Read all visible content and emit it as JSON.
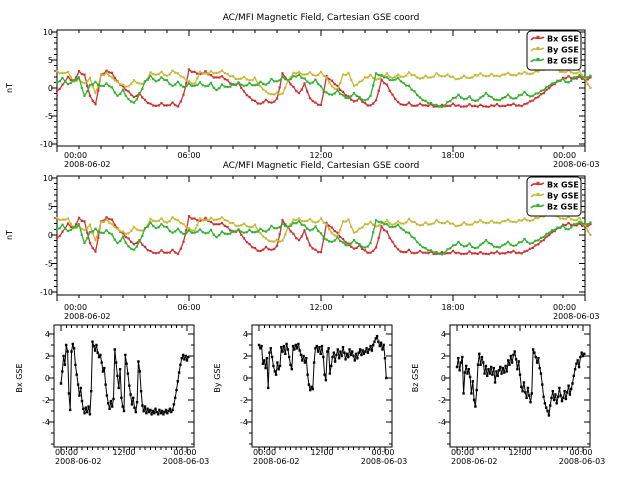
{
  "figure": {
    "background": "#ffffff",
    "axis_color": "#000000"
  },
  "chart_data": {
    "type": "line",
    "x_start": "2008-06-02 00:00",
    "x_end": "2008-06-03 00:00",
    "x_unit": "hours",
    "x_step_hours": 0.25,
    "series": [
      {
        "name": "Bx GSE",
        "color": "#cc3333",
        "values": [
          -0.5,
          0.6,
          2.0,
          1.2,
          3.0,
          2.4,
          -1.4,
          -2.9,
          2.4,
          3.1,
          2.7,
          1.2,
          0.3,
          -0.6,
          -1.6,
          -0.9,
          -2.1,
          -2.8,
          -3.2,
          -2.7,
          -3.1,
          -2.6,
          -3.3,
          -1.2,
          3.3,
          2.9,
          2.5,
          3.0,
          2.3,
          1.9,
          2.1,
          1.4,
          0.6,
          0.9,
          -0.6,
          -1.6,
          -2.3,
          -2.8,
          -2.1,
          -2.6,
          -1.9,
          2.6,
          1.4,
          0.2,
          -0.9,
          0.8,
          -1.8,
          -2.6,
          -3.0,
          2.1,
          1.3,
          0.4,
          -0.7,
          -1.5,
          -2.4,
          -1.8,
          -2.7,
          -3.1,
          -2.2,
          1.5,
          0.6,
          -1.2,
          -2.5,
          -3.0,
          -2.6,
          -3.2,
          -2.8,
          -3.1,
          -2.9,
          -3.3,
          -3.0,
          -3.2,
          -2.8,
          -3.1,
          -3.3,
          -2.9,
          -3.2,
          -3.0,
          -3.3,
          -3.1,
          -2.9,
          -3.2,
          -3.0,
          -2.8,
          -3.1,
          -2.9,
          -2.4,
          -1.8,
          -1.1,
          -0.3,
          0.5,
          1.2,
          1.8,
          2.1,
          1.7,
          2.0,
          1.6,
          1.9
        ]
      },
      {
        "name": "By GSE",
        "color": "#c8b83a",
        "values": [
          3.0,
          2.7,
          2.9,
          1.3,
          1.6,
          0.9,
          1.8,
          -0.9,
          2.3,
          2.7,
          1.9,
          1.1,
          0.6,
          0.3,
          1.4,
          0.8,
          1.1,
          2.8,
          2.4,
          2.9,
          2.2,
          3.1,
          2.6,
          1.9,
          1.2,
          0.8,
          2.9,
          2.6,
          3.0,
          2.7,
          3.1,
          2.5,
          2.1,
          1.6,
          2.0,
          1.4,
          1.8,
          0.3,
          -0.6,
          -1.1,
          -0.8,
          -1.0,
          1.4,
          2.7,
          2.9,
          2.4,
          2.8,
          2.2,
          2.9,
          1.9,
          0.3,
          -0.2,
          2.4,
          2.7,
          0.4,
          1.1,
          1.9,
          2.3,
          1.5,
          2.1,
          2.6,
          1.8,
          2.4,
          2.0,
          2.8,
          2.3,
          1.7,
          2.2,
          1.9,
          2.6,
          2.1,
          2.4,
          2.0,
          1.6,
          2.2,
          1.8,
          2.3,
          2.6,
          2.1,
          2.5,
          2.2,
          2.4,
          2.7,
          2.3,
          2.6,
          2.9,
          2.5,
          3.0,
          3.3,
          3.6,
          3.8,
          3.3,
          2.9,
          3.2,
          2.6,
          3.0,
          1.8,
          0.0
        ]
      },
      {
        "name": "Bz GSE",
        "color": "#33b033",
        "values": [
          1.0,
          1.8,
          0.7,
          1.4,
          1.9,
          -1.4,
          0.5,
          1.1,
          0.4,
          0.8,
          0.1,
          -1.4,
          -0.3,
          -2.0,
          -2.6,
          -1.1,
          1.2,
          2.2,
          1.2,
          1.9,
          1.4,
          0.4,
          1.1,
          0.2,
          0.8,
          0.4,
          1.0,
          0.3,
          0.9,
          -0.4,
          0.6,
          0.2,
          0.7,
          1.0,
          0.4,
          0.9,
          0.5,
          1.1,
          0.6,
          1.6,
          1.2,
          2.0,
          1.4,
          2.1,
          2.4,
          1.7,
          0.8,
          1.5,
          0.3,
          -0.8,
          -1.2,
          -0.4,
          -1.3,
          -1.8,
          -0.9,
          -1.6,
          -2.2,
          -1.4,
          2.6,
          2.3,
          1.9,
          1.4,
          1.8,
          0.9,
          0.4,
          -0.6,
          -1.7,
          -2.3,
          -2.7,
          -3.0,
          -3.4,
          -2.5,
          -1.8,
          -1.2,
          -2.0,
          -1.5,
          -2.3,
          -1.7,
          -0.9,
          -1.6,
          -2.1,
          -1.8,
          -1.2,
          -1.9,
          -1.3,
          -0.7,
          -1.5,
          -1.0,
          -0.5,
          0.2,
          0.8,
          1.3,
          1.6,
          1.0,
          1.9,
          2.3,
          2.0,
          2.2
        ]
      }
    ],
    "panels": [
      {
        "id": "top1",
        "title": "AC/MFI  Magnetic Field, Cartesian GSE coord",
        "ylabel": "nT",
        "ylim": [
          -10,
          10
        ],
        "yticks": [
          10,
          5,
          0,
          -5,
          -10
        ],
        "series": [
          0,
          1,
          2
        ],
        "legend": [
          "Bx GSE",
          "By GSE",
          "Bz GSE"
        ],
        "xticks": [
          {
            "hour": 0,
            "label": "00:00",
            "date": "2008-06-02"
          },
          {
            "hour": 6,
            "label": "06:00"
          },
          {
            "hour": 12,
            "label": "12:00"
          },
          {
            "hour": 18,
            "label": "18:00"
          },
          {
            "hour": 24,
            "label": "00:00",
            "date": "2008-06-03"
          }
        ]
      },
      {
        "id": "top2",
        "title": "AC/MFI  Magnetic Field, Cartesian GSE coord",
        "ylabel": "nT",
        "ylim": [
          -10,
          10
        ],
        "yticks": [
          10,
          5,
          0,
          -5,
          -10
        ],
        "series": [
          0,
          1,
          2
        ],
        "legend": [
          "Bx GSE",
          "By GSE",
          "Bz GSE"
        ],
        "xticks": [
          {
            "hour": 0,
            "label": "00:00",
            "date": "2008-06-02"
          },
          {
            "hour": 6,
            "label": "06:00"
          },
          {
            "hour": 12,
            "label": "12:00"
          },
          {
            "hour": 18,
            "label": "18:00"
          },
          {
            "hour": 24,
            "label": "00:00",
            "date": "2008-06-03"
          }
        ]
      },
      {
        "id": "bottom-bx",
        "title": "",
        "ylabel": "Bx GSE",
        "ylim": [
          -6.3,
          4.8
        ],
        "yticks": [
          4,
          2,
          0,
          -2,
          -4
        ],
        "series": [
          0
        ],
        "legend": null,
        "xticks": [
          {
            "hour": 0,
            "label": "00:00",
            "date": "2008-06-02"
          },
          {
            "hour": 12,
            "label": "12:00"
          },
          {
            "hour": 24,
            "label": "00:00",
            "date": "2008-06-03"
          }
        ]
      },
      {
        "id": "bottom-by",
        "title": "",
        "ylabel": "By GSE",
        "ylim": [
          -6.3,
          4.8
        ],
        "yticks": [
          4,
          2,
          0,
          -2,
          -4
        ],
        "series": [
          1
        ],
        "legend": null,
        "xticks": [
          {
            "hour": 0,
            "label": "00:00",
            "date": "2008-06-02"
          },
          {
            "hour": 12,
            "label": "12:00"
          },
          {
            "hour": 24,
            "label": "00:00",
            "date": "2008-06-03"
          }
        ]
      },
      {
        "id": "bottom-bz",
        "title": "",
        "ylabel": "Bz GSE",
        "ylim": [
          -6.3,
          4.8
        ],
        "yticks": [
          4,
          2,
          0,
          -2,
          -4
        ],
        "series": [
          2
        ],
        "legend": null,
        "xticks": [
          {
            "hour": 0,
            "label": "00:00",
            "date": "2008-06-02"
          },
          {
            "hour": 12,
            "label": "12:00"
          },
          {
            "hour": 24,
            "label": "00:00",
            "date": "2008-06-03"
          }
        ]
      }
    ]
  }
}
